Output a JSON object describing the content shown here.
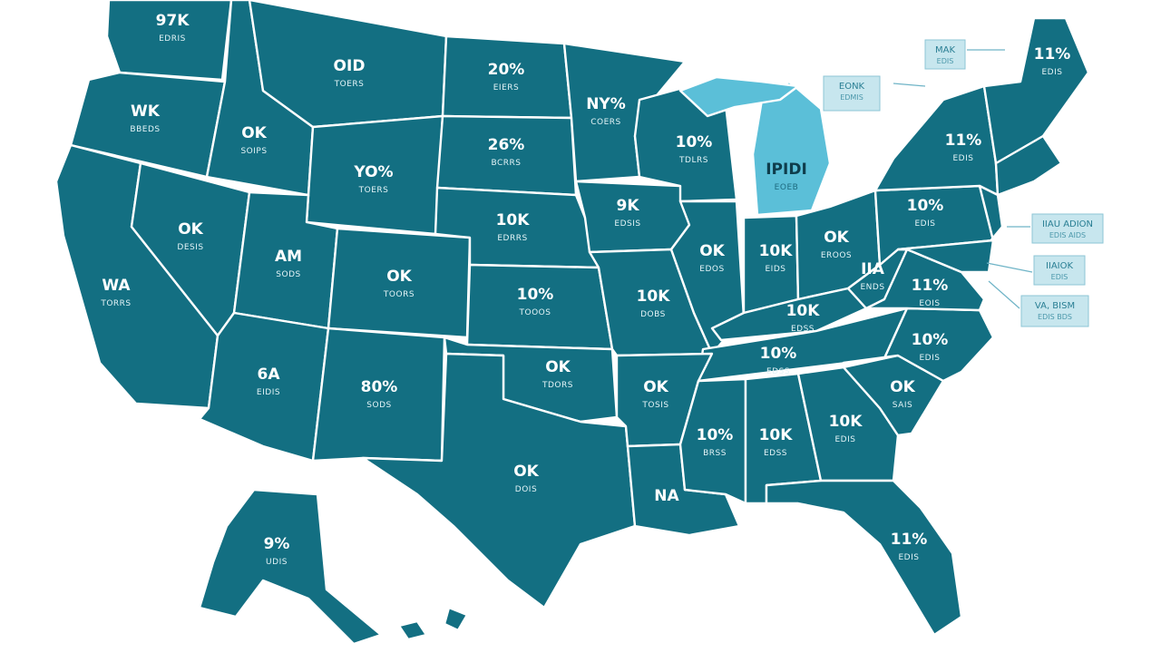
{
  "colors": {
    "fill": "#136f82",
    "highlight": "#5bbfd8",
    "border": "#ffffff"
  },
  "states": [
    {
      "id": "wa",
      "big": "97K",
      "small": "EDRIS"
    },
    {
      "id": "mt",
      "big": "OID",
      "small": "TOERS"
    },
    {
      "id": "nd",
      "big": "20%",
      "small": "EIERS"
    },
    {
      "id": "mn",
      "big": "NY%",
      "small": "COERS"
    },
    {
      "id": "or",
      "big": "WK",
      "small": "BBEDS"
    },
    {
      "id": "id",
      "big": "OK",
      "small": "SOIPS"
    },
    {
      "id": "wy",
      "big": "YO%",
      "small": "TOERS"
    },
    {
      "id": "sd",
      "big": "26%",
      "small": "BCRRS"
    },
    {
      "id": "wi",
      "big": "10%",
      "small": "TDLRS"
    },
    {
      "id": "mi",
      "big": "IPIDI",
      "small": "EOEB"
    },
    {
      "id": "ne",
      "big": "10K",
      "small": "EDRRS"
    },
    {
      "id": "ia",
      "big": "9K",
      "small": "EDSIS"
    },
    {
      "id": "nv",
      "big": "OK",
      "small": "DESIS"
    },
    {
      "id": "ut",
      "big": "AM",
      "small": "SODS"
    },
    {
      "id": "co",
      "big": "OK",
      "small": "TOORS"
    },
    {
      "id": "ks",
      "big": "10%",
      "small": "TOOOS"
    },
    {
      "id": "mo",
      "big": "10K",
      "small": "DOBS"
    },
    {
      "id": "il",
      "big": "OK",
      "small": "EDOS"
    },
    {
      "id": "in",
      "big": "10K",
      "small": "EIDS"
    },
    {
      "id": "oh",
      "big": "OK",
      "small": "EROOS"
    },
    {
      "id": "ca",
      "big": "WA",
      "small": "TORRS"
    },
    {
      "id": "az",
      "big": "6A",
      "small": "EIDIS"
    },
    {
      "id": "nm",
      "big": "80%",
      "small": "SODS"
    },
    {
      "id": "ok",
      "big": "OK",
      "small": "TDORS"
    },
    {
      "id": "ar",
      "big": "OK",
      "small": "TOSIS"
    },
    {
      "id": "ky",
      "big": "10K",
      "small": "EDSS"
    },
    {
      "id": "tn",
      "big": "10%",
      "small": "EDSS"
    },
    {
      "id": "ms",
      "big": "10%",
      "small": "BRSS"
    },
    {
      "id": "al",
      "big": "10K",
      "small": "EDSS"
    },
    {
      "id": "ga",
      "big": "10K",
      "small": "EDIS"
    },
    {
      "id": "sc",
      "big": "OK",
      "small": "SAIS"
    },
    {
      "id": "nc",
      "big": "10%",
      "small": "EDIS"
    },
    {
      "id": "va",
      "big": "11%",
      "small": "EOIS"
    },
    {
      "id": "wv",
      "big": "IIA",
      "small": "ENDS"
    },
    {
      "id": "pa",
      "big": "10%",
      "small": "EDIS"
    },
    {
      "id": "ny",
      "big": "11%",
      "small": "EDIS"
    },
    {
      "id": "me",
      "big": "11%",
      "small": "EDIS"
    },
    {
      "id": "tx",
      "big": "OK",
      "small": "DOIS"
    },
    {
      "id": "la",
      "big": "NA",
      "small": ""
    },
    {
      "id": "fl",
      "big": "11%",
      "small": "EDIS"
    },
    {
      "id": "ak",
      "big": "9%",
      "small": "UDIS"
    }
  ],
  "callouts": [
    {
      "id": "vt-callout",
      "line1": "MAK",
      "line2": "EDIS"
    },
    {
      "id": "mi-callout",
      "line1": "EONK",
      "line2": "EDMIS"
    },
    {
      "id": "nj-callout",
      "line1": "IIAU ADION",
      "line2": "EDIS AIDS"
    },
    {
      "id": "md-callout",
      "line1": "IIAIOK",
      "line2": "EDIS"
    },
    {
      "id": "de-callout",
      "line1": "VA, BISM",
      "line2": "EDIS BDS"
    }
  ]
}
